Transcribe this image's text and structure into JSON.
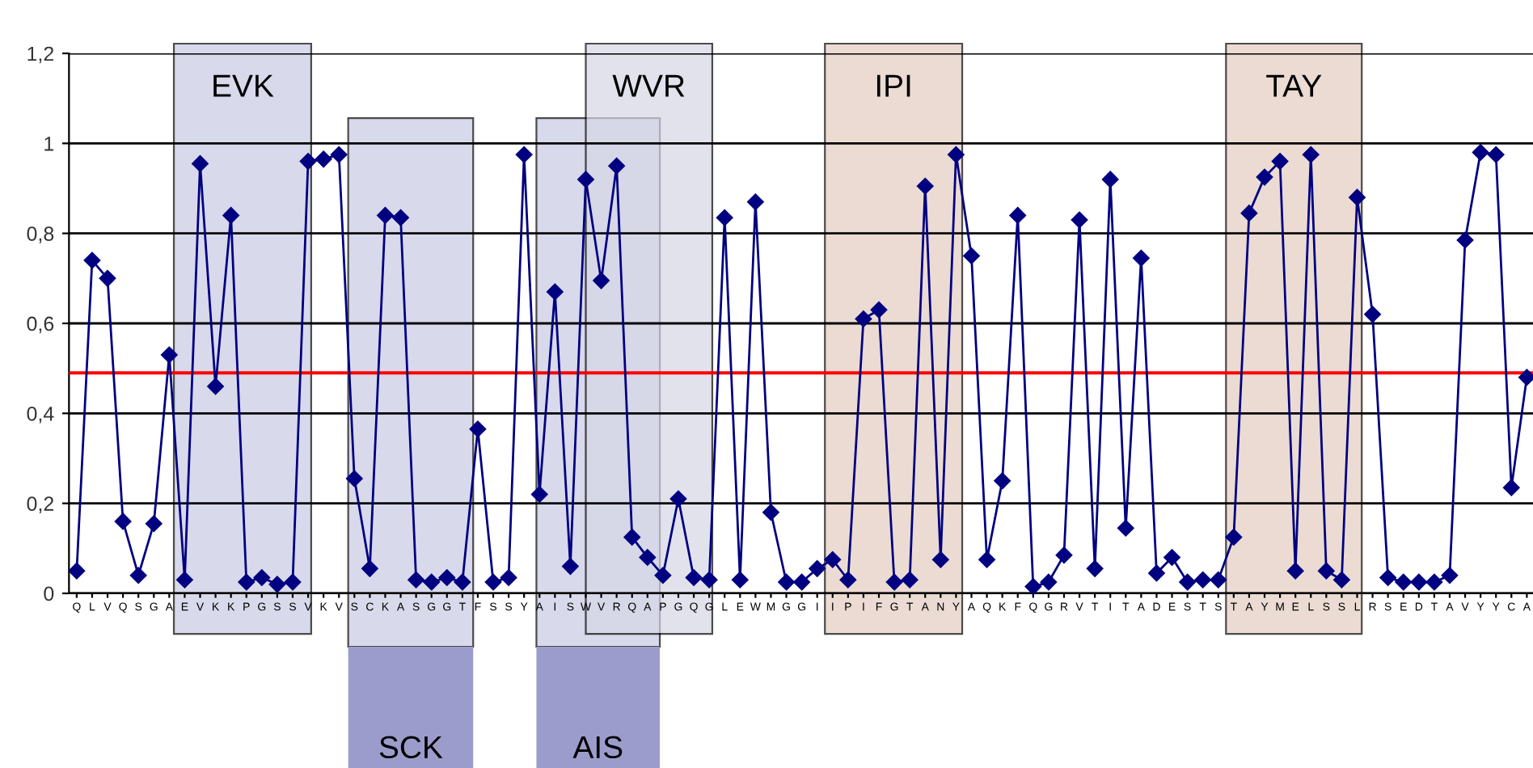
{
  "chart_data": {
    "type": "line",
    "categories": [
      "Q",
      "L",
      "V",
      "Q",
      "S",
      "G",
      "A",
      "E",
      "V",
      "K",
      "K",
      "P",
      "G",
      "S",
      "S",
      "V",
      "K",
      "V",
      "S",
      "C",
      "K",
      "A",
      "S",
      "G",
      "G",
      "T",
      "F",
      "S",
      "S",
      "Y",
      "A",
      "I",
      "S",
      "W",
      "V",
      "R",
      "Q",
      "A",
      "P",
      "G",
      "Q",
      "G",
      "L",
      "E",
      "W",
      "M",
      "G",
      "G",
      "I",
      "I",
      "P",
      "I",
      "F",
      "G",
      "T",
      "A",
      "N",
      "Y",
      "A",
      "Q",
      "K",
      "F",
      "Q",
      "G",
      "R",
      "V",
      "T",
      "I",
      "T",
      "A",
      "D",
      "E",
      "S",
      "T",
      "S",
      "T",
      "A",
      "Y",
      "M",
      "E",
      "L",
      "S",
      "S",
      "L",
      "R",
      "S",
      "E",
      "D",
      "T",
      "A",
      "V",
      "Y",
      "Y",
      "C",
      "A"
    ],
    "series": [
      {
        "color": "#000080",
        "values": [
          0.05,
          0.74,
          0.7,
          0.16,
          0.04,
          0.155,
          0.53,
          0.03,
          0.955,
          0.46,
          0.84,
          0.025,
          0.035,
          0.02,
          0.025,
          0.96,
          0.965,
          0.975,
          0.255,
          0.055,
          0.84,
          0.835,
          0.03,
          0.025,
          0.035,
          0.025,
          0.365,
          0.025,
          0.035,
          0.975,
          0.22,
          0.67,
          0.06,
          0.92,
          0.695,
          0.95,
          0.125,
          0.08,
          0.04,
          0.21,
          0.035,
          0.03,
          0.835,
          0.03,
          0.87,
          0.18,
          0.025,
          0.025,
          0.055,
          0.075,
          0.03,
          0.61,
          0.63,
          0.025,
          0.03,
          0.905,
          0.075,
          0.975,
          0.75,
          0.075,
          0.25,
          0.84,
          0.015,
          0.025,
          0.085,
          0.83,
          0.055,
          0.92,
          0.145,
          0.745,
          0.045,
          0.08,
          0.025,
          0.03,
          0.03,
          0.125,
          0.845,
          0.925,
          0.96,
          0.05,
          0.975,
          0.05,
          0.03,
          0.88,
          0.62,
          0.035,
          0.025,
          0.025,
          0.025,
          0.04,
          0.785,
          0.98,
          0.975,
          0.235,
          0.48
        ]
      }
    ],
    "marker": "diamond",
    "line_style": "solid",
    "grid": "y",
    "ylim": [
      0,
      1.2
    ],
    "yticks": [
      {
        "value": 0,
        "label": "0"
      },
      {
        "value": 0.2,
        "label": "0,2"
      },
      {
        "value": 0.4,
        "label": "0,4"
      },
      {
        "value": 0.6,
        "label": "0,6"
      },
      {
        "value": 0.8,
        "label": "0,8"
      },
      {
        "value": 1,
        "label": "1"
      },
      {
        "value": 1.2,
        "label": "1,2"
      }
    ],
    "ref_lines": [
      {
        "axis": "y",
        "value": 0.49,
        "color": "#ff0000"
      }
    ],
    "annotations": [
      "EVK",
      "SCK",
      "AIS",
      "WVR",
      "IPI",
      "TAY"
    ]
  }
}
